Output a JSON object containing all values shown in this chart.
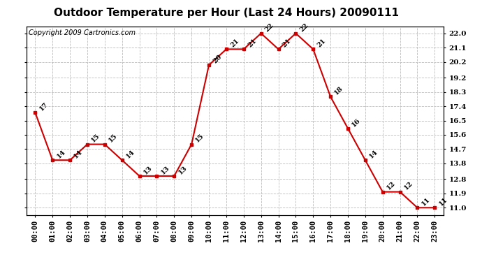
{
  "title": "Outdoor Temperature per Hour (Last 24 Hours) 20090111",
  "copyright": "Copyright 2009 Cartronics.com",
  "hours": [
    "00:00",
    "01:00",
    "02:00",
    "03:00",
    "04:00",
    "05:00",
    "06:00",
    "07:00",
    "08:00",
    "09:00",
    "10:00",
    "11:00",
    "12:00",
    "13:00",
    "14:00",
    "15:00",
    "16:00",
    "17:00",
    "18:00",
    "19:00",
    "20:00",
    "21:00",
    "22:00",
    "23:00"
  ],
  "temperatures": [
    17,
    14,
    14,
    15,
    15,
    14,
    13,
    13,
    13,
    15,
    20,
    21,
    21,
    22,
    21,
    22,
    21,
    18,
    16,
    14,
    12,
    12,
    11,
    11
  ],
  "line_color": "#cc0000",
  "marker_color": "#cc0000",
  "bg_color": "#ffffff",
  "grid_color": "#bbbbbb",
  "title_fontsize": 11,
  "copyright_fontsize": 7,
  "tick_fontsize": 7.5,
  "point_label_fontsize": 7,
  "ylim_min": 10.55,
  "ylim_max": 22.45,
  "yticks": [
    11.0,
    11.9,
    12.8,
    13.8,
    14.7,
    15.6,
    16.5,
    17.4,
    18.3,
    19.2,
    20.2,
    21.1,
    22.0
  ]
}
